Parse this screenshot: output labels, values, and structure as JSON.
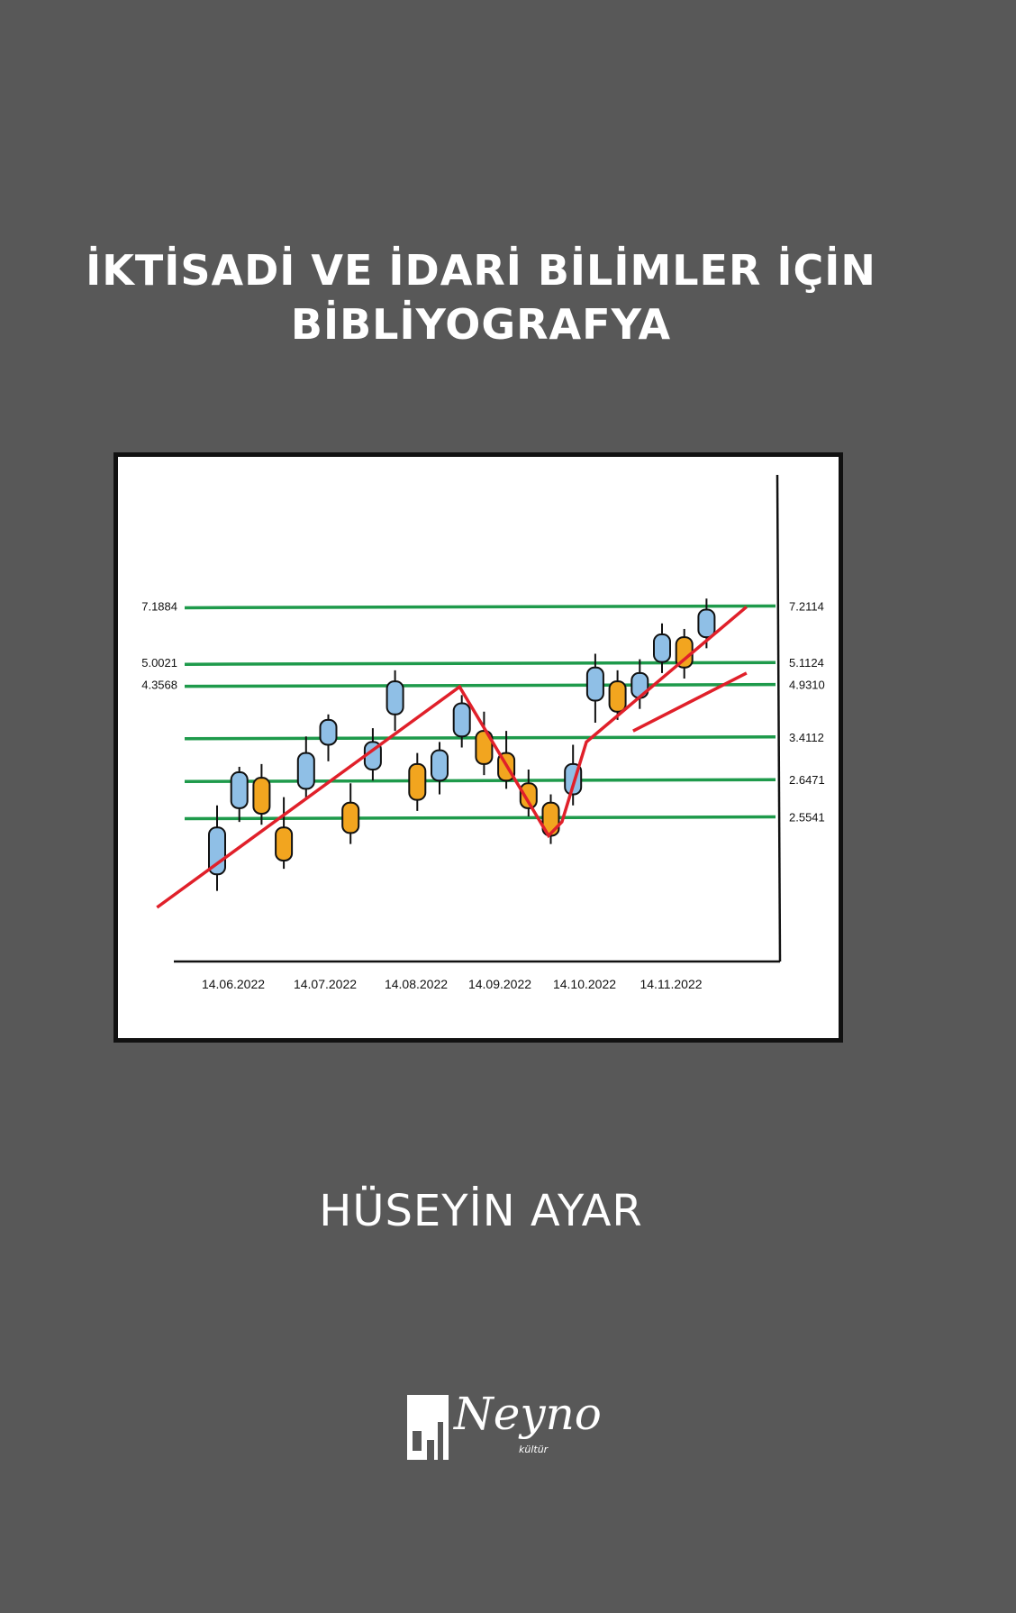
{
  "cover": {
    "title_line1": "İKTİSADİ VE İDARİ BİLİMLER İÇİN",
    "title_line2": "BİBLİYOGRAFYA",
    "author": "HÜSEYİN AYAR",
    "publisher_name": "Neyno",
    "publisher_sub": "kültür",
    "background_color": "#585858"
  },
  "chart_data": {
    "type": "candlestick",
    "x_labels": [
      "14.06.2022",
      "14.07.2022",
      "14.08.2022",
      "14.09.2022",
      "14.10.2022",
      "14.11.2022"
    ],
    "levels_left": [
      "7.1884",
      "5.0021",
      "4.3568"
    ],
    "levels_right": [
      "7.2114",
      "5.1124",
      "4.9310",
      "3.4112",
      "2.6471",
      "2.5541"
    ],
    "colors": {
      "bull": "#8fbfe6",
      "bear": "#f2a51f",
      "level_line": "#1e9a4b",
      "trend_line": "#e0202a"
    },
    "candles": [
      {
        "dir": "up",
        "open": 1.2,
        "close": 2.9,
        "high": 3.7,
        "low": 0.6
      },
      {
        "dir": "up",
        "open": 3.6,
        "close": 4.9,
        "high": 5.1,
        "low": 3.1
      },
      {
        "dir": "down",
        "open": 4.7,
        "close": 3.4,
        "high": 5.2,
        "low": 3.0
      },
      {
        "dir": "down",
        "open": 2.9,
        "close": 1.7,
        "high": 4.0,
        "low": 1.4
      },
      {
        "dir": "up",
        "open": 4.3,
        "close": 5.6,
        "high": 6.2,
        "low": 3.9
      },
      {
        "dir": "up",
        "open": 5.9,
        "close": 6.8,
        "high": 7.0,
        "low": 5.3
      },
      {
        "dir": "down",
        "open": 3.8,
        "close": 2.7,
        "high": 4.5,
        "low": 2.3
      },
      {
        "dir": "up",
        "open": 5.0,
        "close": 6.0,
        "high": 6.5,
        "low": 4.6
      },
      {
        "dir": "up",
        "open": 7.0,
        "close": 8.2,
        "high": 8.6,
        "low": 6.4
      },
      {
        "dir": "down",
        "open": 5.2,
        "close": 3.9,
        "high": 5.6,
        "low": 3.5
      },
      {
        "dir": "up",
        "open": 4.6,
        "close": 5.7,
        "high": 6.0,
        "low": 4.1
      },
      {
        "dir": "up",
        "open": 6.2,
        "close": 7.4,
        "high": 7.7,
        "low": 5.8
      },
      {
        "dir": "down",
        "open": 6.4,
        "close": 5.2,
        "high": 7.1,
        "low": 4.8
      },
      {
        "dir": "down",
        "open": 5.6,
        "close": 4.6,
        "high": 6.4,
        "low": 4.3
      },
      {
        "dir": "down",
        "open": 4.5,
        "close": 3.6,
        "high": 5.0,
        "low": 3.3
      },
      {
        "dir": "down",
        "open": 3.8,
        "close": 2.6,
        "high": 4.1,
        "low": 2.3
      },
      {
        "dir": "up",
        "open": 4.1,
        "close": 5.2,
        "high": 5.9,
        "low": 3.7
      },
      {
        "dir": "up",
        "open": 7.5,
        "close": 8.7,
        "high": 9.2,
        "low": 6.7
      },
      {
        "dir": "down",
        "open": 8.2,
        "close": 7.1,
        "high": 8.6,
        "low": 6.8
      },
      {
        "dir": "up",
        "open": 7.6,
        "close": 8.5,
        "high": 9.0,
        "low": 7.2
      },
      {
        "dir": "up",
        "open": 8.9,
        "close": 9.9,
        "high": 10.3,
        "low": 8.5
      },
      {
        "dir": "down",
        "open": 9.8,
        "close": 8.7,
        "high": 10.1,
        "low": 8.3
      },
      {
        "dir": "up",
        "open": 9.8,
        "close": 10.8,
        "high": 11.2,
        "low": 9.4
      }
    ],
    "level_values": [
      10.9,
      8.85,
      8.05,
      6.15,
      4.6,
      3.25
    ],
    "trend_points": [
      [
        0,
        0.0
      ],
      [
        10.9,
        8.0
      ],
      [
        14.9,
        2.6
      ],
      [
        15.5,
        3.1
      ],
      [
        16.6,
        6.0
      ],
      [
        23.8,
        10.9
      ]
    ],
    "trend_branch": [
      [
        18.7,
        6.4
      ],
      [
        23.8,
        8.5
      ]
    ]
  }
}
